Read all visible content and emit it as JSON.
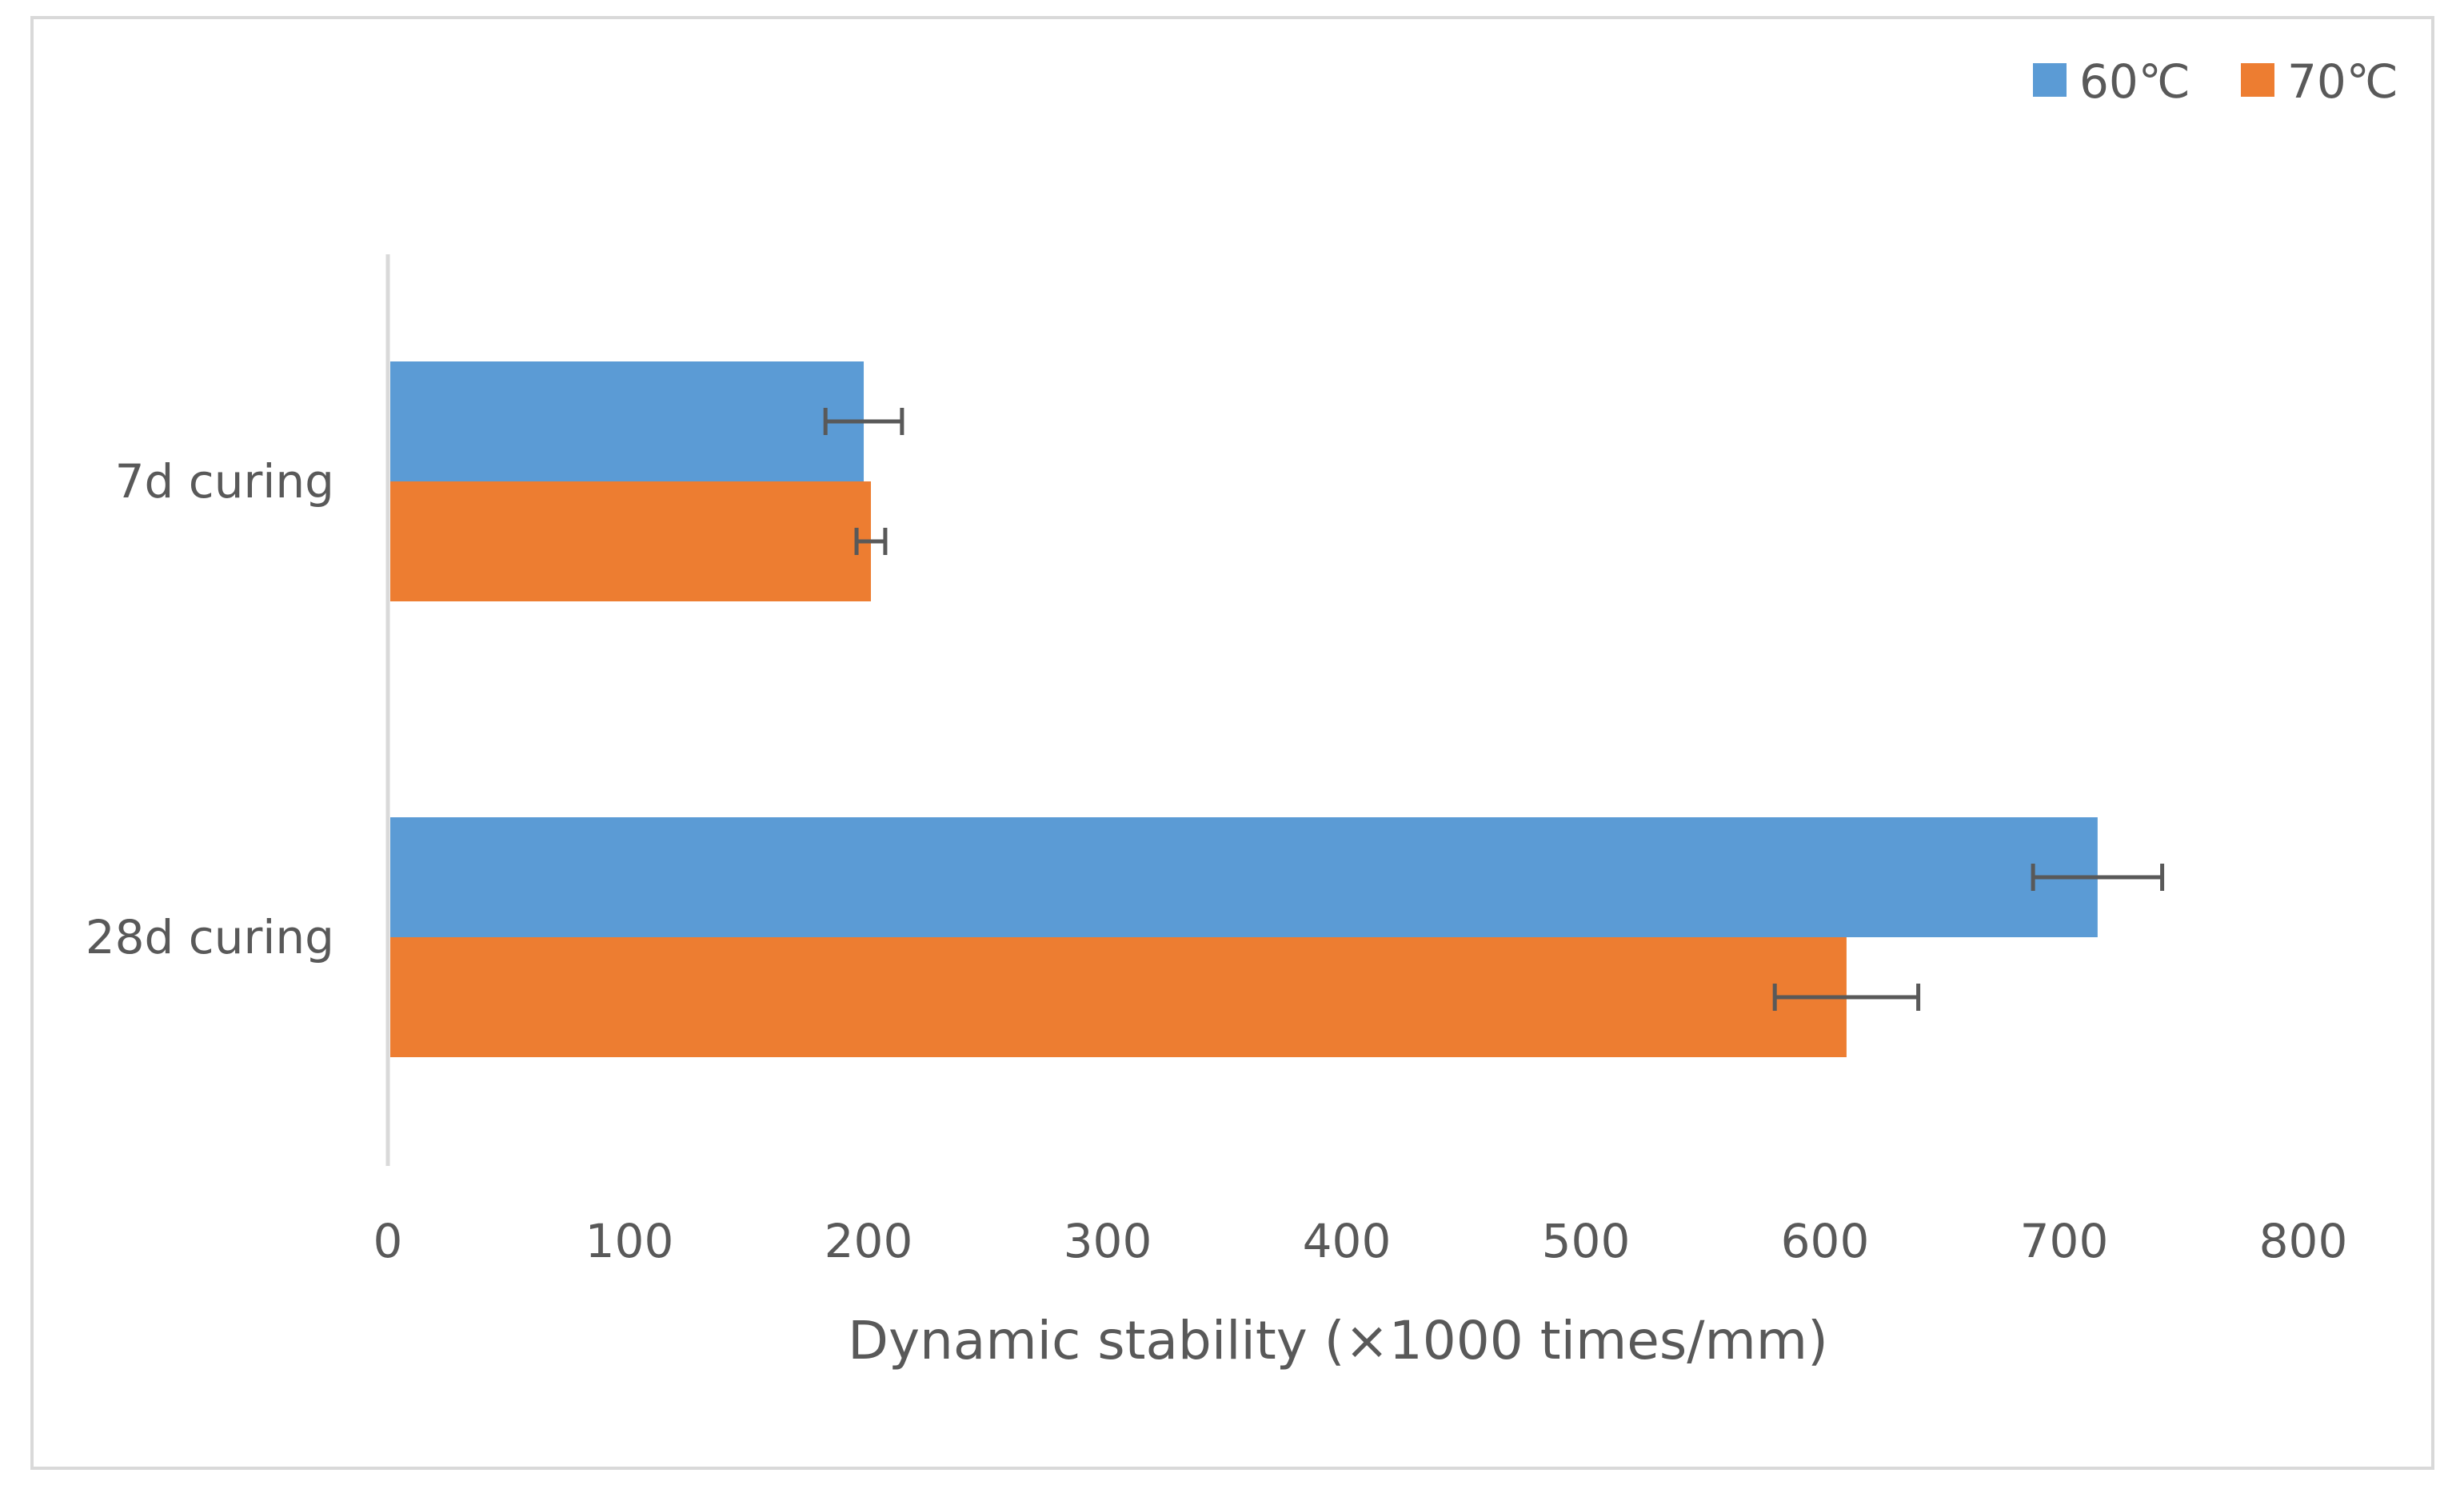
{
  "chart_data": {
    "type": "bar",
    "orientation": "horizontal",
    "categories": [
      "7d curing",
      "28d curing"
    ],
    "series": [
      {
        "name": "60℃",
        "color": "#5b9bd5",
        "values": [
          198,
          714
        ],
        "errors": [
          16,
          27
        ]
      },
      {
        "name": "70℃",
        "color": "#ed7d31",
        "values": [
          201,
          609
        ],
        "errors": [
          6,
          30
        ]
      }
    ],
    "xlabel": "Dynamic stability (×1000 times/mm)",
    "ylabel": "",
    "xlim": [
      0,
      800
    ],
    "xticks": [
      0,
      100,
      200,
      300,
      400,
      500,
      600,
      700,
      800
    ],
    "grid": false,
    "legend_position": "top-right",
    "error_bar_color": "#595959",
    "axis_color": "#d9d9d9"
  }
}
